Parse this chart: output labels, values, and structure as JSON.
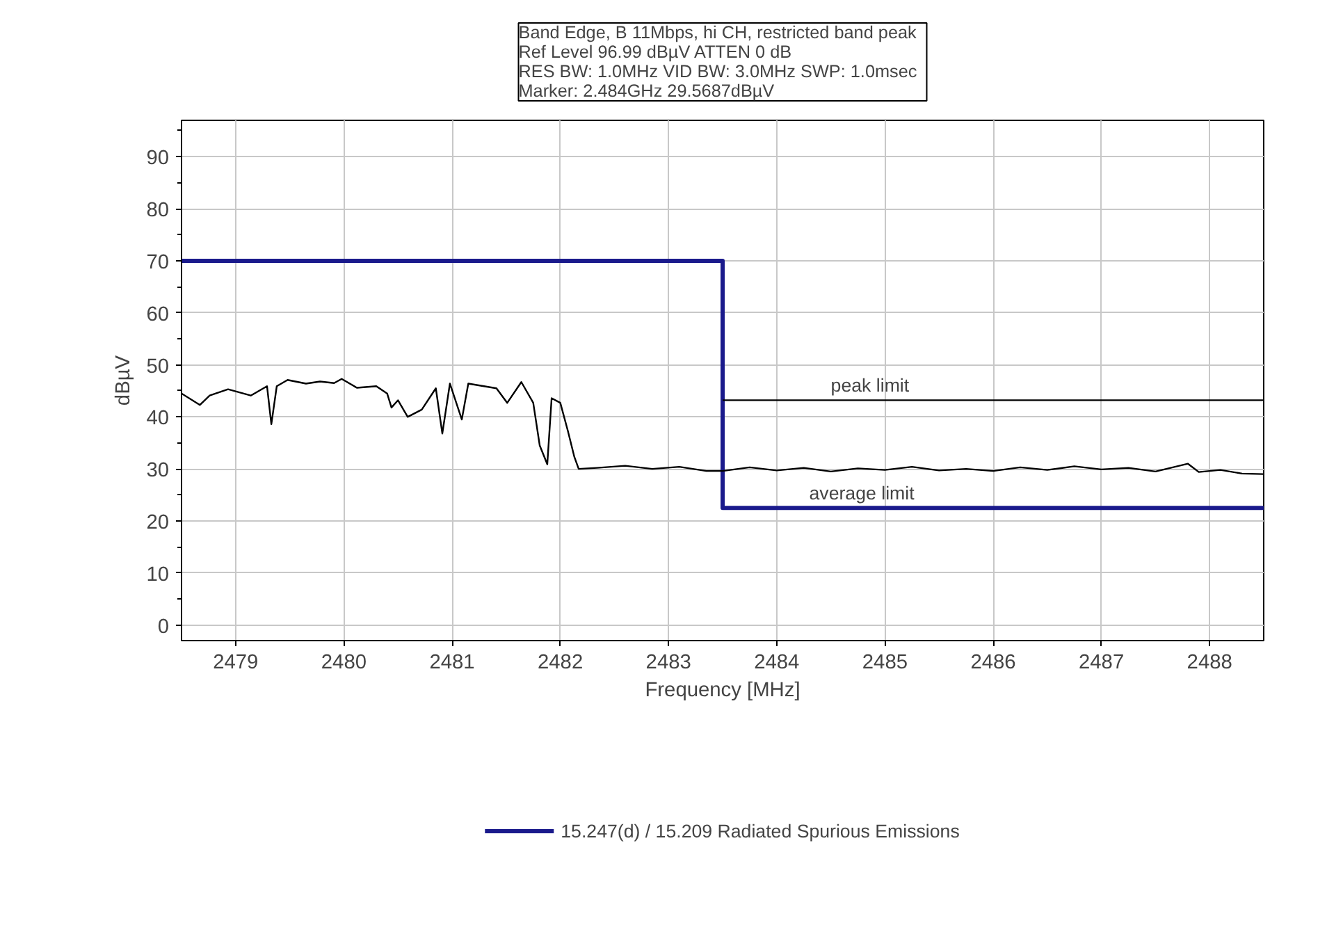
{
  "chart_data": {
    "type": "line",
    "title": "Band Edge, B 11Mbps, hi CH, restricted band peak\nRef Level 96.99 dBµV    ATTEN 0 dB\nRES BW: 1.0MHz  VID BW: 3.0MHz  SWP: 1.0msec\nMarker: 2.484GHz  29.5687dBµV",
    "xlabel": "Frequency [MHz]",
    "ylabel": "dBµV",
    "xlim": [
      2478.5,
      2488.5
    ],
    "xticks": [
      2479,
      2480,
      2481,
      2482,
      2483,
      2484,
      2485,
      2486,
      2487,
      2488
    ],
    "ylim": [
      -3,
      97
    ],
    "yticks": [
      0,
      10,
      20,
      30,
      40,
      50,
      60,
      70,
      80,
      90
    ],
    "grid": true,
    "legend": "bottom",
    "marker": "none",
    "line_style": "solid",
    "annotations": [
      {
        "text": "peak limit",
        "x": 2484.5,
        "y": 43.2
      },
      {
        "text": "average limit",
        "x": 2484.3,
        "y": 22.5
      }
    ],
    "series": [
      {
        "name": "15.247(d) / 15.209 Radiated Spurious Emissions",
        "color": "#1a1a8c",
        "x": [
          2478.5,
          2483.5,
          2483.5,
          2488.5
        ],
        "values": [
          70,
          70,
          22.5,
          22.5
        ]
      },
      {
        "color": "#000000",
        "x": [
          2483.5,
          2488.5
        ],
        "values": [
          43.2,
          43.2
        ]
      },
      {
        "color": "#000000",
        "x": [
          2478.5,
          2478.67,
          2478.76,
          2478.93,
          2479.14,
          2479.29,
          2479.33,
          2479.38,
          2479.48,
          2479.65,
          2479.78,
          2479.91,
          2479.98,
          2480.12,
          2480.3,
          2480.4,
          2480.44,
          2480.5,
          2480.59,
          2480.72,
          2480.85,
          2480.91,
          2480.98,
          2481.09,
          2481.15,
          2481.41,
          2481.51,
          2481.64,
          2481.75,
          2481.81,
          2481.88,
          2481.92,
          2482.0,
          2482.07,
          2482.13,
          2482.17,
          2482.34,
          2482.6,
          2482.85,
          2483.1,
          2483.35,
          2483.5,
          2483.75,
          2484.0,
          2484.25,
          2484.5,
          2484.75,
          2485.0,
          2485.25,
          2485.5,
          2485.75,
          2486.0,
          2486.25,
          2486.5,
          2486.75,
          2487.0,
          2487.25,
          2487.5,
          2487.8,
          2487.9,
          2488.1,
          2488.3,
          2488.5
        ],
        "values": [
          44.5,
          42.3,
          44.1,
          45.3,
          44.1,
          45.9,
          38.6,
          45.9,
          47.1,
          46.4,
          46.8,
          46.5,
          47.3,
          45.6,
          45.9,
          44.5,
          41.8,
          43.2,
          40.0,
          41.4,
          45.5,
          36.8,
          46.4,
          39.5,
          46.4,
          45.5,
          42.7,
          46.7,
          42.7,
          34.5,
          30.9,
          43.6,
          42.7,
          37.3,
          32.3,
          30.0,
          30.2,
          30.6,
          30.0,
          30.4,
          29.6,
          29.6,
          30.3,
          29.7,
          30.2,
          29.5,
          30.1,
          29.8,
          30.4,
          29.7,
          30.0,
          29.6,
          30.3,
          29.8,
          30.5,
          29.9,
          30.2,
          29.5,
          31.0,
          29.4,
          29.8,
          29.1,
          29.0
        ]
      }
    ]
  }
}
